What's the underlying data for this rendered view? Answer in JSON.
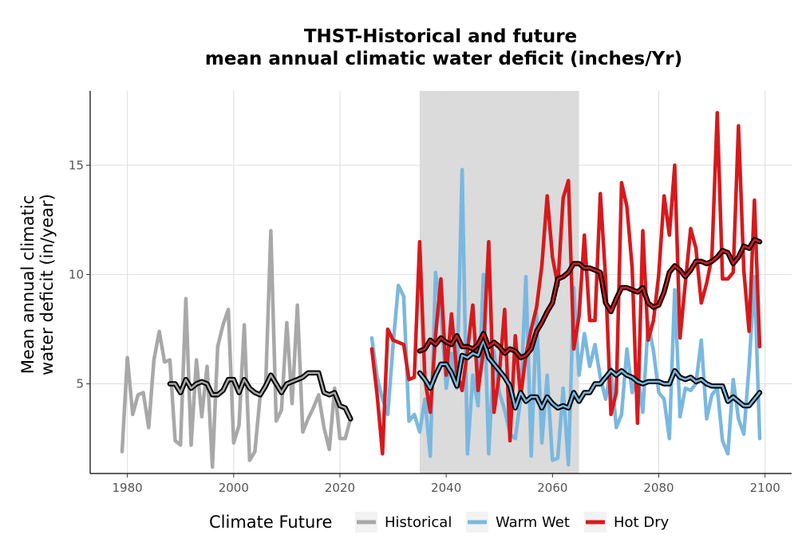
{
  "chart_data": {
    "type": "line",
    "title_line1": "THST-Historical and future",
    "title_line2": "mean annual climatic water deficit (inches/Yr)",
    "xlabel": "",
    "ylabel_line1": "Mean annual climatic",
    "ylabel_line2": "water deficit (in/year)",
    "xlim": [
      1973,
      2105
    ],
    "ylim": [
      0.9,
      18.4
    ],
    "x_ticks": [
      1980,
      2000,
      2020,
      2040,
      2060,
      2080,
      2100
    ],
    "x_tick_labels": [
      "1980",
      "2000",
      "2020",
      "2040",
      "2060",
      "2080",
      "2100"
    ],
    "y_ticks": [
      5,
      10,
      15
    ],
    "y_tick_labels": [
      "5",
      "10",
      "15"
    ],
    "grid": true,
    "shaded_period": [
      2035,
      2065
    ],
    "legend": {
      "title": "Climate Future",
      "position": "bottom",
      "entries": [
        "Historical",
        "Warm Wet",
        "Hot Dry"
      ]
    },
    "series": [
      {
        "name": "Historical",
        "color": "#a8a8a8",
        "x": [
          1979,
          1980,
          1981,
          1982,
          1983,
          1984,
          1985,
          1986,
          1987,
          1988,
          1989,
          1990,
          1991,
          1992,
          1993,
          1994,
          1995,
          1996,
          1997,
          1998,
          1999,
          2000,
          2001,
          2002,
          2003,
          2004,
          2005,
          2006,
          2007,
          2008,
          2009,
          2010,
          2011,
          2012,
          2013,
          2014,
          2015,
          2016,
          2017,
          2018,
          2019,
          2020,
          2021,
          2022
        ],
        "values": [
          1.9,
          6.2,
          3.6,
          4.5,
          4.6,
          3.0,
          6.1,
          7.4,
          6.0,
          6.1,
          2.4,
          2.2,
          8.9,
          2.2,
          6.1,
          3.5,
          5.8,
          1.2,
          6.7,
          7.7,
          8.4,
          2.3,
          3.1,
          7.7,
          1.5,
          1.9,
          4.5,
          4.8,
          12.0,
          3.3,
          3.8,
          7.8,
          4.1,
          8.6,
          2.8,
          3.4,
          3.9,
          4.5,
          3.0,
          2.0,
          4.8,
          2.5,
          2.5,
          3.4
        ]
      },
      {
        "name": "Warm Wet",
        "color": "#79b8e0",
        "x": [
          2026,
          2027,
          2028,
          2029,
          2030,
          2031,
          2032,
          2033,
          2034,
          2035,
          2036,
          2037,
          2038,
          2039,
          2040,
          2041,
          2042,
          2043,
          2044,
          2045,
          2046,
          2047,
          2048,
          2049,
          2050,
          2051,
          2052,
          2053,
          2054,
          2055,
          2056,
          2057,
          2058,
          2059,
          2060,
          2061,
          2062,
          2063,
          2064,
          2065,
          2066,
          2067,
          2068,
          2069,
          2070,
          2071,
          2072,
          2073,
          2074,
          2075,
          2076,
          2077,
          2078,
          2079,
          2080,
          2081,
          2082,
          2083,
          2084,
          2085,
          2086,
          2087,
          2088,
          2089,
          2090,
          2091,
          2092,
          2093,
          2094,
          2095,
          2096,
          2097,
          2098,
          2099
        ],
        "values": [
          7.1,
          5.3,
          4.3,
          3.6,
          6.8,
          9.5,
          9.0,
          3.3,
          3.6,
          2.8,
          4.3,
          1.7,
          10.1,
          8.3,
          4.8,
          6.4,
          4.8,
          14.8,
          1.8,
          5.4,
          4.0,
          10.0,
          1.8,
          6.5,
          4.6,
          3.8,
          2.7,
          2.5,
          4.3,
          9.9,
          1.7,
          8.2,
          2.3,
          5.4,
          1.5,
          1.6,
          4.8,
          1.3,
          9.4,
          5.4,
          7.3,
          5.8,
          6.8,
          5.3,
          4.3,
          5.7,
          3.0,
          3.6,
          6.6,
          4.6,
          5.5,
          3.7,
          7.8,
          6.5,
          4.6,
          4.3,
          2.5,
          9.3,
          3.5,
          4.8,
          4.7,
          5.0,
          7.0,
          3.4,
          4.5,
          4.8,
          2.4,
          1.8,
          5.2,
          3.4,
          2.7,
          5.8,
          9.9,
          2.5
        ]
      },
      {
        "name": "Hot Dry",
        "color": "#d7191c",
        "x": [
          2026,
          2027,
          2028,
          2029,
          2030,
          2031,
          2032,
          2033,
          2034,
          2035,
          2036,
          2037,
          2038,
          2039,
          2040,
          2041,
          2042,
          2043,
          2044,
          2045,
          2046,
          2047,
          2048,
          2049,
          2050,
          2051,
          2052,
          2053,
          2054,
          2055,
          2056,
          2057,
          2058,
          2059,
          2060,
          2061,
          2062,
          2063,
          2064,
          2065,
          2066,
          2067,
          2068,
          2069,
          2070,
          2071,
          2072,
          2073,
          2074,
          2075,
          2076,
          2077,
          2078,
          2079,
          2080,
          2081,
          2082,
          2083,
          2084,
          2085,
          2086,
          2087,
          2088,
          2089,
          2090,
          2091,
          2092,
          2093,
          2094,
          2095,
          2096,
          2097,
          2098,
          2099
        ],
        "values": [
          6.6,
          4.5,
          1.8,
          7.5,
          7.0,
          6.9,
          6.8,
          5.2,
          5.3,
          11.5,
          5.2,
          3.7,
          7.2,
          9.8,
          5.4,
          8.2,
          5.5,
          4.7,
          6.5,
          8.6,
          4.7,
          6.5,
          11.5,
          3.7,
          5.5,
          8.4,
          2.4,
          7.2,
          4.4,
          6.3,
          7.5,
          8.5,
          10.4,
          13.6,
          10.8,
          9.5,
          13.5,
          14.3,
          6.6,
          8.1,
          11.8,
          7.9,
          7.9,
          13.7,
          9.8,
          3.6,
          4.6,
          14.2,
          13.1,
          10.3,
          3.2,
          12.0,
          7.0,
          7.9,
          10.0,
          13.6,
          11.8,
          15.0,
          7.1,
          9.6,
          12.1,
          11.2,
          8.7,
          9.6,
          10.8,
          17.4,
          9.8,
          9.8,
          10.1,
          16.8,
          10.2,
          7.4,
          13.4,
          6.7
        ]
      }
    ],
    "smoothed_lines": [
      {
        "series": "Historical",
        "outline_color": "#000000",
        "x": [
          1988,
          1989,
          1990,
          1991,
          1992,
          1993,
          1994,
          1995,
          1996,
          1997,
          1998,
          1999,
          2000,
          2001,
          2002,
          2003,
          2004,
          2005,
          2006,
          2007,
          2008,
          2009,
          2010,
          2011,
          2012,
          2013,
          2014,
          2015,
          2016,
          2017,
          2018,
          2019,
          2020,
          2021,
          2022
        ],
        "values": [
          5.0,
          5.0,
          4.6,
          5.2,
          4.8,
          5.0,
          5.1,
          5.0,
          4.5,
          4.5,
          4.7,
          5.2,
          5.2,
          4.6,
          5.2,
          4.8,
          4.6,
          4.5,
          4.9,
          5.4,
          5.0,
          4.6,
          5.0,
          5.1,
          5.2,
          5.3,
          5.5,
          5.5,
          5.5,
          4.6,
          4.5,
          4.6,
          4.0,
          3.9,
          3.4
        ]
      },
      {
        "series": "Warm Wet",
        "outline_color": "#000000",
        "x": [
          2035,
          2036,
          2037,
          2038,
          2039,
          2040,
          2041,
          2042,
          2043,
          2044,
          2045,
          2046,
          2047,
          2048,
          2049,
          2050,
          2051,
          2052,
          2053,
          2054,
          2055,
          2056,
          2057,
          2058,
          2059,
          2060,
          2061,
          2062,
          2063,
          2064,
          2065,
          2066,
          2067,
          2068,
          2069,
          2070,
          2071,
          2072,
          2073,
          2074,
          2075,
          2076,
          2077,
          2078,
          2079,
          2080,
          2081,
          2082,
          2083,
          2084,
          2085,
          2086,
          2087,
          2088,
          2089,
          2090,
          2091,
          2092,
          2093,
          2094,
          2095,
          2096,
          2097,
          2098,
          2099
        ],
        "values": [
          5.5,
          5.2,
          4.8,
          5.4,
          5.9,
          5.9,
          5.5,
          4.9,
          6.3,
          6.2,
          6.4,
          6.3,
          7.0,
          6.2,
          5.9,
          5.6,
          5.3,
          4.9,
          3.9,
          4.6,
          4.2,
          4.4,
          4.4,
          3.9,
          4.4,
          4.1,
          3.9,
          4.0,
          3.9,
          4.6,
          4.2,
          4.6,
          4.6,
          5.0,
          5.0,
          5.3,
          5.6,
          5.4,
          5.6,
          5.4,
          5.3,
          5.1,
          5.0,
          5.1,
          5.1,
          5.1,
          5.0,
          5.0,
          5.6,
          5.3,
          5.2,
          5.3,
          5.1,
          5.2,
          5.0,
          4.9,
          4.9,
          4.9,
          4.2,
          4.4,
          4.2,
          4.0,
          4.0,
          4.3,
          4.6
        ]
      },
      {
        "series": "Hot Dry",
        "outline_color": "#000000",
        "x": [
          2035,
          2036,
          2037,
          2038,
          2039,
          2040,
          2041,
          2042,
          2043,
          2044,
          2045,
          2046,
          2047,
          2048,
          2049,
          2050,
          2051,
          2052,
          2053,
          2054,
          2055,
          2056,
          2057,
          2058,
          2059,
          2060,
          2061,
          2062,
          2063,
          2064,
          2065,
          2066,
          2067,
          2068,
          2069,
          2070,
          2071,
          2072,
          2073,
          2074,
          2075,
          2076,
          2077,
          2078,
          2079,
          2080,
          2081,
          2082,
          2083,
          2084,
          2085,
          2086,
          2087,
          2088,
          2089,
          2090,
          2091,
          2092,
          2093,
          2094,
          2095,
          2096,
          2097,
          2098,
          2099
        ],
        "values": [
          6.5,
          6.6,
          7.0,
          6.8,
          7.1,
          6.9,
          6.8,
          7.2,
          6.7,
          6.7,
          6.6,
          6.8,
          7.3,
          6.7,
          6.9,
          6.7,
          6.4,
          6.6,
          6.5,
          6.2,
          6.3,
          6.6,
          7.4,
          7.8,
          8.3,
          8.7,
          9.8,
          9.9,
          10.1,
          10.5,
          10.5,
          10.3,
          10.3,
          10.2,
          10.1,
          8.7,
          8.3,
          8.9,
          9.4,
          9.4,
          9.3,
          9.2,
          9.4,
          8.7,
          8.5,
          8.6,
          9.2,
          10.1,
          10.4,
          10.2,
          9.9,
          10.2,
          10.6,
          10.6,
          10.5,
          10.6,
          10.8,
          11.1,
          11.0,
          10.5,
          10.8,
          11.3,
          11.2,
          11.6,
          11.5
        ]
      }
    ]
  }
}
